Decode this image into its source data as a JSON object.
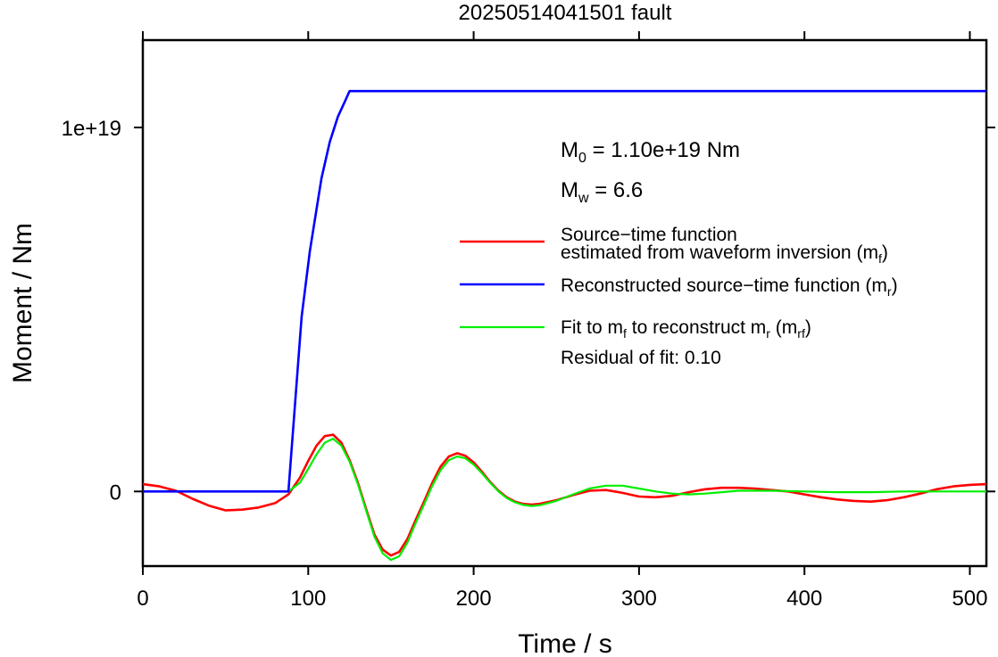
{
  "chart_data": {
    "type": "line",
    "title": "20250514041501 fault",
    "xlabel": "Time / s",
    "ylabel": "Moment / Nm",
    "xlim": [
      0,
      510
    ],
    "ylim": [
      -2.05e+18,
      1.24e+19
    ],
    "xticks": [
      0,
      100,
      200,
      300,
      400,
      500
    ],
    "xtick_labels": [
      "0",
      "100",
      "200",
      "300",
      "400",
      "500"
    ],
    "yticks": [
      0,
      1e+19
    ],
    "ytick_labels": [
      "0",
      "1e+19"
    ],
    "grid": false,
    "legend_position": "right",
    "annotations": {
      "m0": {
        "main": "M",
        "sub": "0",
        "text": " = 1.10e+19 Nm"
      },
      "mw": {
        "main": "M",
        "sub": "w",
        "text": " = 6.6"
      },
      "residual": "Residual of fit: 0.10"
    },
    "legend": [
      {
        "color": "#ff0000",
        "line1": "Source−time function",
        "line2": {
          "text": "estimated from waveform inversion (m",
          "sub": "f",
          "after": ")"
        }
      },
      {
        "color": "#0000ff",
        "line1": {
          "text": "Reconstructed source−time function (m",
          "sub": "r",
          "after": ")"
        }
      },
      {
        "color": "#00ee00",
        "line1": {
          "t1": "Fit to m",
          "s1": "f",
          "t2": " to reconstruct m",
          "s2": "r",
          "t3": " (m",
          "s3": "rf",
          "t4": ")"
        }
      }
    ],
    "series": [
      {
        "name": "Source−time function estimated from waveform inversion (mf)",
        "color": "#ff0000",
        "width": 2.6,
        "x": [
          0,
          10,
          20,
          30,
          40,
          50,
          60,
          70,
          80,
          88,
          95,
          100,
          105,
          110,
          115,
          120,
          125,
          130,
          135,
          140,
          145,
          150,
          155,
          160,
          165,
          170,
          175,
          180,
          185,
          190,
          195,
          200,
          205,
          210,
          215,
          220,
          225,
          230,
          235,
          240,
          250,
          260,
          270,
          280,
          290,
          300,
          310,
          320,
          330,
          340,
          350,
          360,
          370,
          380,
          390,
          400,
          410,
          420,
          430,
          440,
          450,
          460,
          470,
          480,
          490,
          500,
          510
        ],
        "y": [
          2e+17,
          1.4e+17,
          2e+16,
          -2e+17,
          -3.9e+17,
          -5.2e+17,
          -5e+17,
          -4.4e+17,
          -3.2e+17,
          -8e+16,
          3.8e+17,
          8.4e+17,
          1.26e+18,
          1.52e+18,
          1.56e+18,
          1.34e+18,
          8.6e+17,
          2.4e+17,
          -4.8e+17,
          -1.18e+18,
          -1.6e+18,
          -1.76e+18,
          -1.66e+18,
          -1.3e+18,
          -7.8e+17,
          -2.8e+17,
          2.4e+17,
          6.8e+17,
          9.6e+17,
          1.05e+18,
          9.8e+17,
          8e+17,
          5.4e+17,
          2.6e+17,
          2e+16,
          -1.6e+17,
          -2.8e+17,
          -3.4e+17,
          -3.6e+17,
          -3.4e+17,
          -2.4e+17,
          -1e+17,
          2e+16,
          4e+16,
          -4e+16,
          -1.4e+17,
          -1.6e+17,
          -1.2e+17,
          -2e+16,
          6e+16,
          1e+17,
          1e+17,
          8e+16,
          4e+16,
          0.0,
          -8e+16,
          -1.6e+17,
          -2.2e+17,
          -2.6e+17,
          -2.8e+17,
          -2.4e+17,
          -1.6e+17,
          -6e+16,
          6e+16,
          1.4e+17,
          1.8e+17,
          2e+17
        ]
      },
      {
        "name": "Reconstructed source−time function (mr)",
        "color": "#0000ff",
        "width": 2.6,
        "x": [
          0,
          88,
          96,
          101,
          108,
          113,
          118,
          122,
          125,
          128,
          510
        ],
        "y": [
          0,
          0,
          4.8e+18,
          6.6e+18,
          8.6e+18,
          9.6e+18,
          1.03e+19,
          1.07e+19,
          1.1e+19,
          1.1e+19,
          1.1e+19
        ]
      },
      {
        "name": "Fit to mf to reconstruct mr (mrf)",
        "color": "#00ee00",
        "width": 2.2,
        "x": [
          0,
          88,
          95,
          100,
          105,
          110,
          115,
          120,
          125,
          130,
          135,
          140,
          145,
          150,
          155,
          160,
          165,
          170,
          175,
          180,
          185,
          190,
          195,
          200,
          205,
          210,
          215,
          220,
          225,
          230,
          235,
          240,
          250,
          260,
          270,
          280,
          290,
          300,
          310,
          320,
          330,
          340,
          350,
          360,
          380,
          400,
          420,
          440,
          460,
          480,
          500,
          510
        ],
        "y": [
          0,
          0,
          2.4e+17,
          6.2e+17,
          1.02e+18,
          1.34e+18,
          1.45e+18,
          1.26e+18,
          8.2e+17,
          2e+17,
          -5.2e+17,
          -1.24e+18,
          -1.7e+18,
          -1.88e+18,
          -1.78e+18,
          -1.4e+18,
          -8.6e+17,
          -3.6e+17,
          1.6e+17,
          5.8e+17,
          8.6e+17,
          9.6e+17,
          9.1e+17,
          7.4e+17,
          5e+17,
          2.4e+17,
          0.0,
          -1.8e+17,
          -3e+17,
          -3.7e+17,
          -4e+17,
          -3.8e+17,
          -2.6e+17,
          -8e+16,
          8e+16,
          1.6e+17,
          1.6e+17,
          8e+16,
          0.0,
          -6e+16,
          -8e+16,
          -6e+16,
          -2e+16,
          2e+16,
          2e+16,
          0.0,
          -2e+16,
          -2e+16,
          0.0,
          0.0,
          0.0,
          0.0
        ]
      }
    ]
  }
}
